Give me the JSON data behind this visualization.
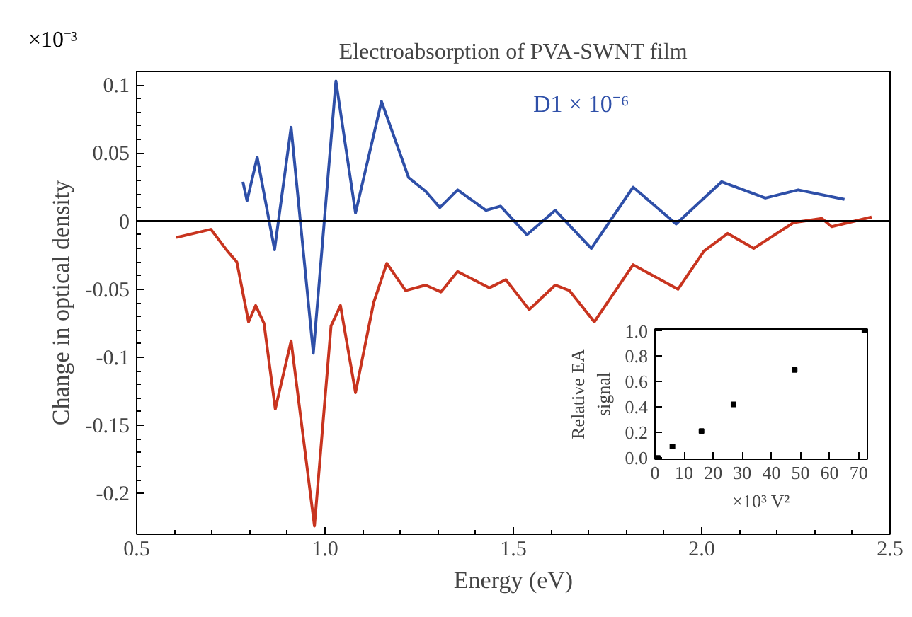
{
  "chart_data": [
    {
      "type": "line",
      "title": "Electroabsorption of PVA-SWNT film",
      "xlabel": "Energy (eV)",
      "ylabel": "Change in optical density",
      "annotations": [
        "×10⁻³",
        "D1 × 10⁻⁶"
      ],
      "xlim": [
        0.5,
        2.5
      ],
      "ylim": [
        -0.23,
        0.11
      ],
      "xticks": [
        {
          "value": 0.5,
          "label": "0.5"
        },
        {
          "value": 1.0,
          "label": "1.0"
        },
        {
          "value": 1.5,
          "label": "1.5"
        },
        {
          "value": 2.0,
          "label": "2.0"
        },
        {
          "value": 2.5,
          "label": "2.5"
        }
      ],
      "yticks": [
        0.1,
        0.05,
        0,
        -0.05,
        -0.1,
        -0.15,
        -0.2
      ],
      "grid": false,
      "marker": "none",
      "line_style": "solid",
      "ref_lines": [
        {
          "axis": "y",
          "value": 0,
          "color": "#000000"
        }
      ],
      "series": [
        {
          "color": "#2e4fa8",
          "x": [
            0.782,
            0.793,
            0.82,
            0.866,
            0.91,
            0.969,
            1.029,
            1.081,
            1.15,
            1.222,
            1.267,
            1.305,
            1.352,
            1.427,
            1.466,
            1.536,
            1.611,
            1.707,
            1.818,
            1.932,
            2.053,
            2.169,
            2.256,
            2.379
          ],
          "values": [
            0.029,
            0.015,
            0.047,
            -0.021,
            0.069,
            -0.097,
            0.103,
            0.006,
            0.088,
            0.032,
            0.022,
            0.01,
            0.023,
            0.008,
            0.011,
            -0.01,
            0.008,
            -0.02,
            0.025,
            -0.002,
            0.029,
            0.017,
            0.023,
            0.016
          ]
        },
        {
          "color": "#c8341f",
          "x": [
            0.605,
            0.697,
            0.741,
            0.766,
            0.797,
            0.816,
            0.838,
            0.868,
            0.91,
            0.972,
            1.016,
            1.041,
            1.081,
            1.129,
            1.164,
            1.214,
            1.267,
            1.308,
            1.352,
            1.436,
            1.48,
            1.542,
            1.611,
            1.649,
            1.715,
            1.818,
            1.937,
            2.006,
            2.069,
            2.138,
            2.244,
            2.319,
            2.345,
            2.451
          ],
          "values": [
            -0.012,
            -0.006,
            -0.022,
            -0.03,
            -0.074,
            -0.062,
            -0.075,
            -0.138,
            -0.088,
            -0.224,
            -0.077,
            -0.062,
            -0.126,
            -0.06,
            -0.031,
            -0.051,
            -0.047,
            -0.052,
            -0.037,
            -0.049,
            -0.043,
            -0.065,
            -0.047,
            -0.051,
            -0.074,
            -0.032,
            -0.05,
            -0.022,
            -0.009,
            -0.02,
            -0.001,
            0.002,
            -0.004,
            0.003
          ]
        }
      ]
    },
    {
      "type": "scatter",
      "xlabel": "×10³ V²",
      "ylabel": "Relative EA\nsignal",
      "xlim": [
        0,
        73
      ],
      "ylim": [
        -0.01,
        1.01
      ],
      "xticks": [
        0,
        10,
        20,
        30,
        40,
        50,
        60,
        70
      ],
      "yticks": [
        {
          "value": 0,
          "label": "0.0"
        },
        {
          "value": 0.2,
          "label": "0.2"
        },
        {
          "value": 0.4,
          "label": "0.4"
        },
        {
          "value": 0.6,
          "label": "0.6"
        },
        {
          "value": 0.8,
          "label": "0.8"
        },
        {
          "value": 1.0,
          "label": "1.0"
        }
      ],
      "grid": false,
      "marker": "square",
      "series": [
        {
          "color": "#000000",
          "x": [
            1,
            6,
            16,
            27,
            48,
            72
          ],
          "values": [
            0.0,
            0.09,
            0.21,
            0.42,
            0.69,
            1.0
          ]
        }
      ]
    }
  ]
}
